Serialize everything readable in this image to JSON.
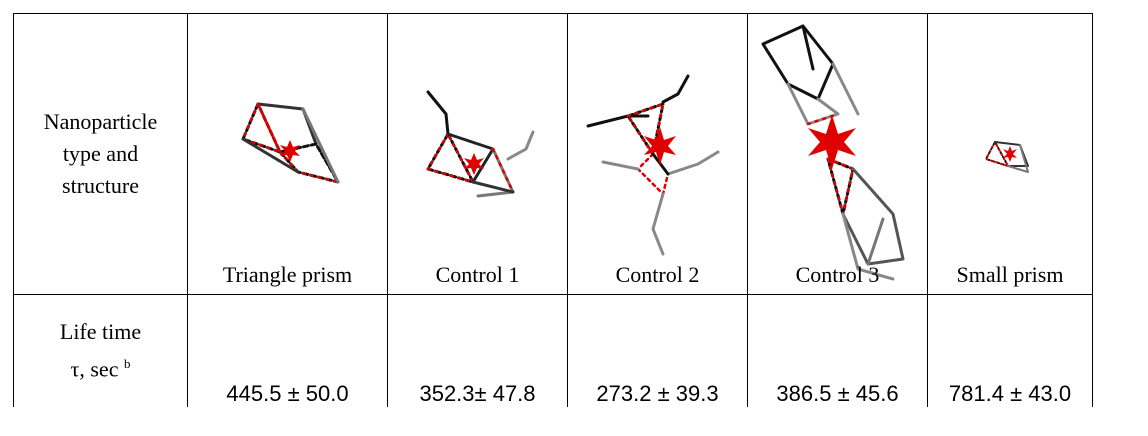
{
  "table": {
    "row1_header": [
      "Nanoparticle",
      "type and",
      "structure"
    ],
    "row2_header_line1": "Life time",
    "row2_header_line2": "τ, sec",
    "row2_header_sup": "b",
    "columns": [
      {
        "label": "Triangle prism",
        "lifetime": "445.5 ± 50.0"
      },
      {
        "label": "Control 1",
        "lifetime": "352.3± 47.8"
      },
      {
        "label": "Control 2",
        "lifetime": "273.2 ± 39.3"
      },
      {
        "label": "Control 3",
        "lifetime": "386.5 ± 45.6"
      },
      {
        "label": "Small prism",
        "lifetime": "781.4 ± 43.0"
      }
    ]
  },
  "colors": {
    "strand_black": "#111111",
    "strand_gray": "#8a8a8a",
    "dye_red": "#e00000"
  }
}
